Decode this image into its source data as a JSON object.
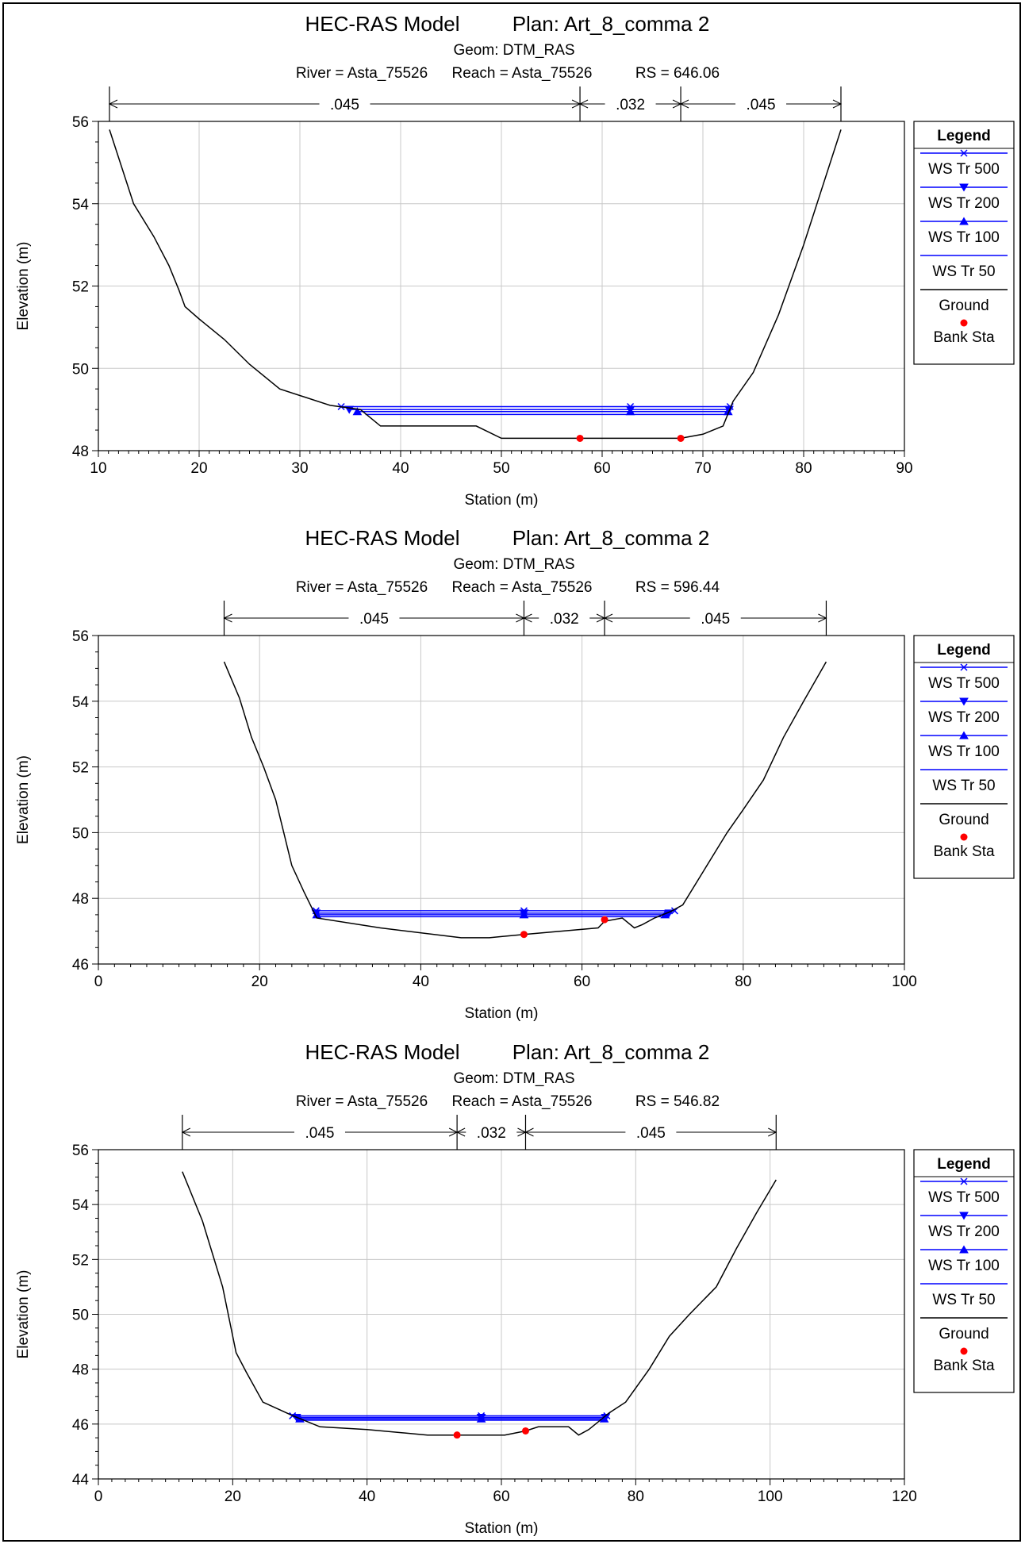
{
  "chart_data": [
    {
      "type": "line",
      "title": "HEC-RAS Model",
      "plan": "Plan: Art_8_comma 2",
      "geom": "Geom: DTM_RAS",
      "river": "River = Asta_75526",
      "reach": "Reach = Asta_75526",
      "rs": "RS = 646.06",
      "xlabel": "Station (m)",
      "ylabel": "Elevation (m)",
      "xlim": [
        10,
        90
      ],
      "ylim": [
        48,
        56
      ],
      "xticks": [
        10,
        20,
        30,
        40,
        50,
        60,
        70,
        80,
        90
      ],
      "yticks": [
        48,
        50,
        52,
        54,
        56
      ],
      "grid": true,
      "legend_position": "right",
      "legend_title": "Legend",
      "manning": [
        {
          "label": ".045",
          "from": 11.1,
          "to": 57.8
        },
        {
          "label": ".032",
          "from": 57.8,
          "to": 67.8
        },
        {
          "label": ".045",
          "from": 67.8,
          "to": 83.7
        }
      ],
      "ground": {
        "name": "Ground",
        "x": [
          11.1,
          13.5,
          15.5,
          17.0,
          18.0,
          18.6,
          20.0,
          22.5,
          25.0,
          28.0,
          33.0,
          36.0,
          38.0,
          47.5,
          50.0,
          57.8,
          67.8,
          70.0,
          72.0,
          73.0,
          75.0,
          77.5,
          80.0,
          83.7
        ],
        "y": [
          55.8,
          54.0,
          53.2,
          52.5,
          51.9,
          51.5,
          51.2,
          50.7,
          50.1,
          49.5,
          49.1,
          49.0,
          48.6,
          48.6,
          48.3,
          48.3,
          48.3,
          48.4,
          48.6,
          49.2,
          49.9,
          51.3,
          53.0,
          55.8
        ]
      },
      "bank_sta": {
        "name": "Bank Sta",
        "x": [
          57.8,
          67.8
        ],
        "y": [
          48.3,
          48.3
        ]
      },
      "water_surfaces": [
        {
          "name": "WS Tr 500",
          "marker": "x",
          "elev": 49.07,
          "left": 34.1,
          "right": 72.7,
          "mid": 62.8
        },
        {
          "name": "WS Tr 200",
          "marker": "tri-down",
          "elev": 49.0,
          "left": 34.9,
          "right": 72.6,
          "mid": 62.8
        },
        {
          "name": "WS Tr 100",
          "marker": "tri-up",
          "elev": 48.95,
          "left": 35.7,
          "right": 72.5,
          "mid": 62.8
        },
        {
          "name": "WS Tr 50",
          "marker": "none",
          "elev": 48.88,
          "left": 36.5,
          "right": 72.4,
          "mid": 62.8
        }
      ]
    },
    {
      "type": "line",
      "title": "HEC-RAS Model",
      "plan": "Plan: Art_8_comma 2",
      "geom": "Geom: DTM_RAS",
      "river": "River = Asta_75526",
      "reach": "Reach = Asta_75526",
      "rs": "RS = 596.44",
      "xlabel": "Station (m)",
      "ylabel": "Elevation (m)",
      "xlim": [
        0,
        100
      ],
      "ylim": [
        46,
        56
      ],
      "xticks": [
        0,
        20,
        40,
        60,
        80,
        100
      ],
      "yticks": [
        46,
        48,
        50,
        52,
        54,
        56
      ],
      "grid": true,
      "legend_position": "right",
      "legend_title": "Legend",
      "manning": [
        {
          "label": ".045",
          "from": 15.6,
          "to": 52.8
        },
        {
          "label": ".032",
          "from": 52.8,
          "to": 62.8
        },
        {
          "label": ".045",
          "from": 62.8,
          "to": 90.3
        }
      ],
      "ground": {
        "name": "Ground",
        "x": [
          15.6,
          17.5,
          19.0,
          20.5,
          22.0,
          23.0,
          24.0,
          25.5,
          27.1,
          35.0,
          45.0,
          48.5,
          52.8,
          62.0,
          62.8,
          65.0,
          66.5,
          67.5,
          69.0,
          71.0,
          72.5,
          75.0,
          78.0,
          80.0,
          82.5,
          85.0,
          87.5,
          90.3
        ],
        "y": [
          55.2,
          54.1,
          52.9,
          52.0,
          51.0,
          50.0,
          49.0,
          48.2,
          47.4,
          47.1,
          46.8,
          46.8,
          46.9,
          47.1,
          47.3,
          47.4,
          47.1,
          47.2,
          47.4,
          47.6,
          47.8,
          48.8,
          50.0,
          50.7,
          51.6,
          52.9,
          54.0,
          55.2
        ]
      },
      "bank_sta": {
        "name": "Bank Sta",
        "x": [
          52.8,
          62.8
        ],
        "y": [
          46.9,
          47.35
        ]
      },
      "water_surfaces": [
        {
          "name": "WS Tr 500",
          "marker": "x",
          "elev": 47.62,
          "left": 27.0,
          "right": 71.5,
          "mid": 52.8
        },
        {
          "name": "WS Tr 200",
          "marker": "tri-down",
          "elev": 47.55,
          "left": 27.0,
          "right": 70.8,
          "mid": 52.8
        },
        {
          "name": "WS Tr 100",
          "marker": "tri-up",
          "elev": 47.5,
          "left": 27.1,
          "right": 70.3,
          "mid": 52.8
        },
        {
          "name": "WS Tr 50",
          "marker": "none",
          "elev": 47.44,
          "left": 27.1,
          "right": 69.8,
          "mid": 52.8
        }
      ]
    },
    {
      "type": "line",
      "title": "HEC-RAS Model",
      "plan": "Plan: Art_8_comma 2",
      "geom": "Geom: DTM_RAS",
      "river": "River = Asta_75526",
      "reach": "Reach = Asta_75526",
      "rs": "RS = 546.82",
      "xlabel": "Station (m)",
      "ylabel": "Elevation (m)",
      "xlim": [
        0,
        120
      ],
      "ylim": [
        44,
        56
      ],
      "xticks": [
        0,
        20,
        40,
        60,
        80,
        100,
        120
      ],
      "yticks": [
        44,
        46,
        48,
        50,
        52,
        54,
        56
      ],
      "grid": true,
      "legend_position": "right",
      "legend_title": "Legend",
      "manning": [
        {
          "label": ".045",
          "from": 12.5,
          "to": 53.4
        },
        {
          "label": ".032",
          "from": 53.4,
          "to": 63.6
        },
        {
          "label": ".045",
          "from": 63.6,
          "to": 100.9
        }
      ],
      "ground": {
        "name": "Ground",
        "x": [
          12.5,
          13.5,
          15.5,
          17.0,
          18.5,
          19.5,
          20.5,
          22.0,
          24.5,
          29.0,
          33.0,
          40.0,
          49.0,
          53.4,
          60.5,
          63.6,
          65.5,
          70.0,
          71.5,
          73.0,
          74.5,
          76.0,
          78.5,
          82.0,
          85.0,
          88.0,
          92.0,
          95.0,
          98.0,
          100.9
        ],
        "y": [
          55.2,
          54.6,
          53.4,
          52.2,
          51.0,
          49.8,
          48.6,
          47.9,
          46.8,
          46.3,
          45.9,
          45.8,
          45.6,
          45.6,
          45.6,
          45.75,
          45.9,
          45.9,
          45.6,
          45.8,
          46.1,
          46.4,
          46.8,
          48.0,
          49.2,
          50.0,
          51.0,
          52.4,
          53.7,
          54.9
        ]
      },
      "bank_sta": {
        "name": "Bank Sta",
        "x": [
          53.4,
          63.6
        ],
        "y": [
          45.6,
          45.75
        ]
      },
      "water_surfaces": [
        {
          "name": "WS Tr 500",
          "marker": "x",
          "elev": 46.3,
          "left": 28.9,
          "right": 75.7,
          "mid": 57.0
        },
        {
          "name": "WS Tr 200",
          "marker": "tri-down",
          "elev": 46.24,
          "left": 29.5,
          "right": 75.5,
          "mid": 57.0
        },
        {
          "name": "WS Tr 100",
          "marker": "tri-up",
          "elev": 46.19,
          "left": 30.0,
          "right": 75.3,
          "mid": 57.0
        },
        {
          "name": "WS Tr 50",
          "marker": "none",
          "elev": 46.14,
          "left": 30.5,
          "right": 75.1,
          "mid": 57.0
        }
      ]
    }
  ],
  "colors": {
    "ground": "#000000",
    "water": "#0000ff",
    "bank": "#ff0000",
    "grid": "#c8c8c8"
  }
}
